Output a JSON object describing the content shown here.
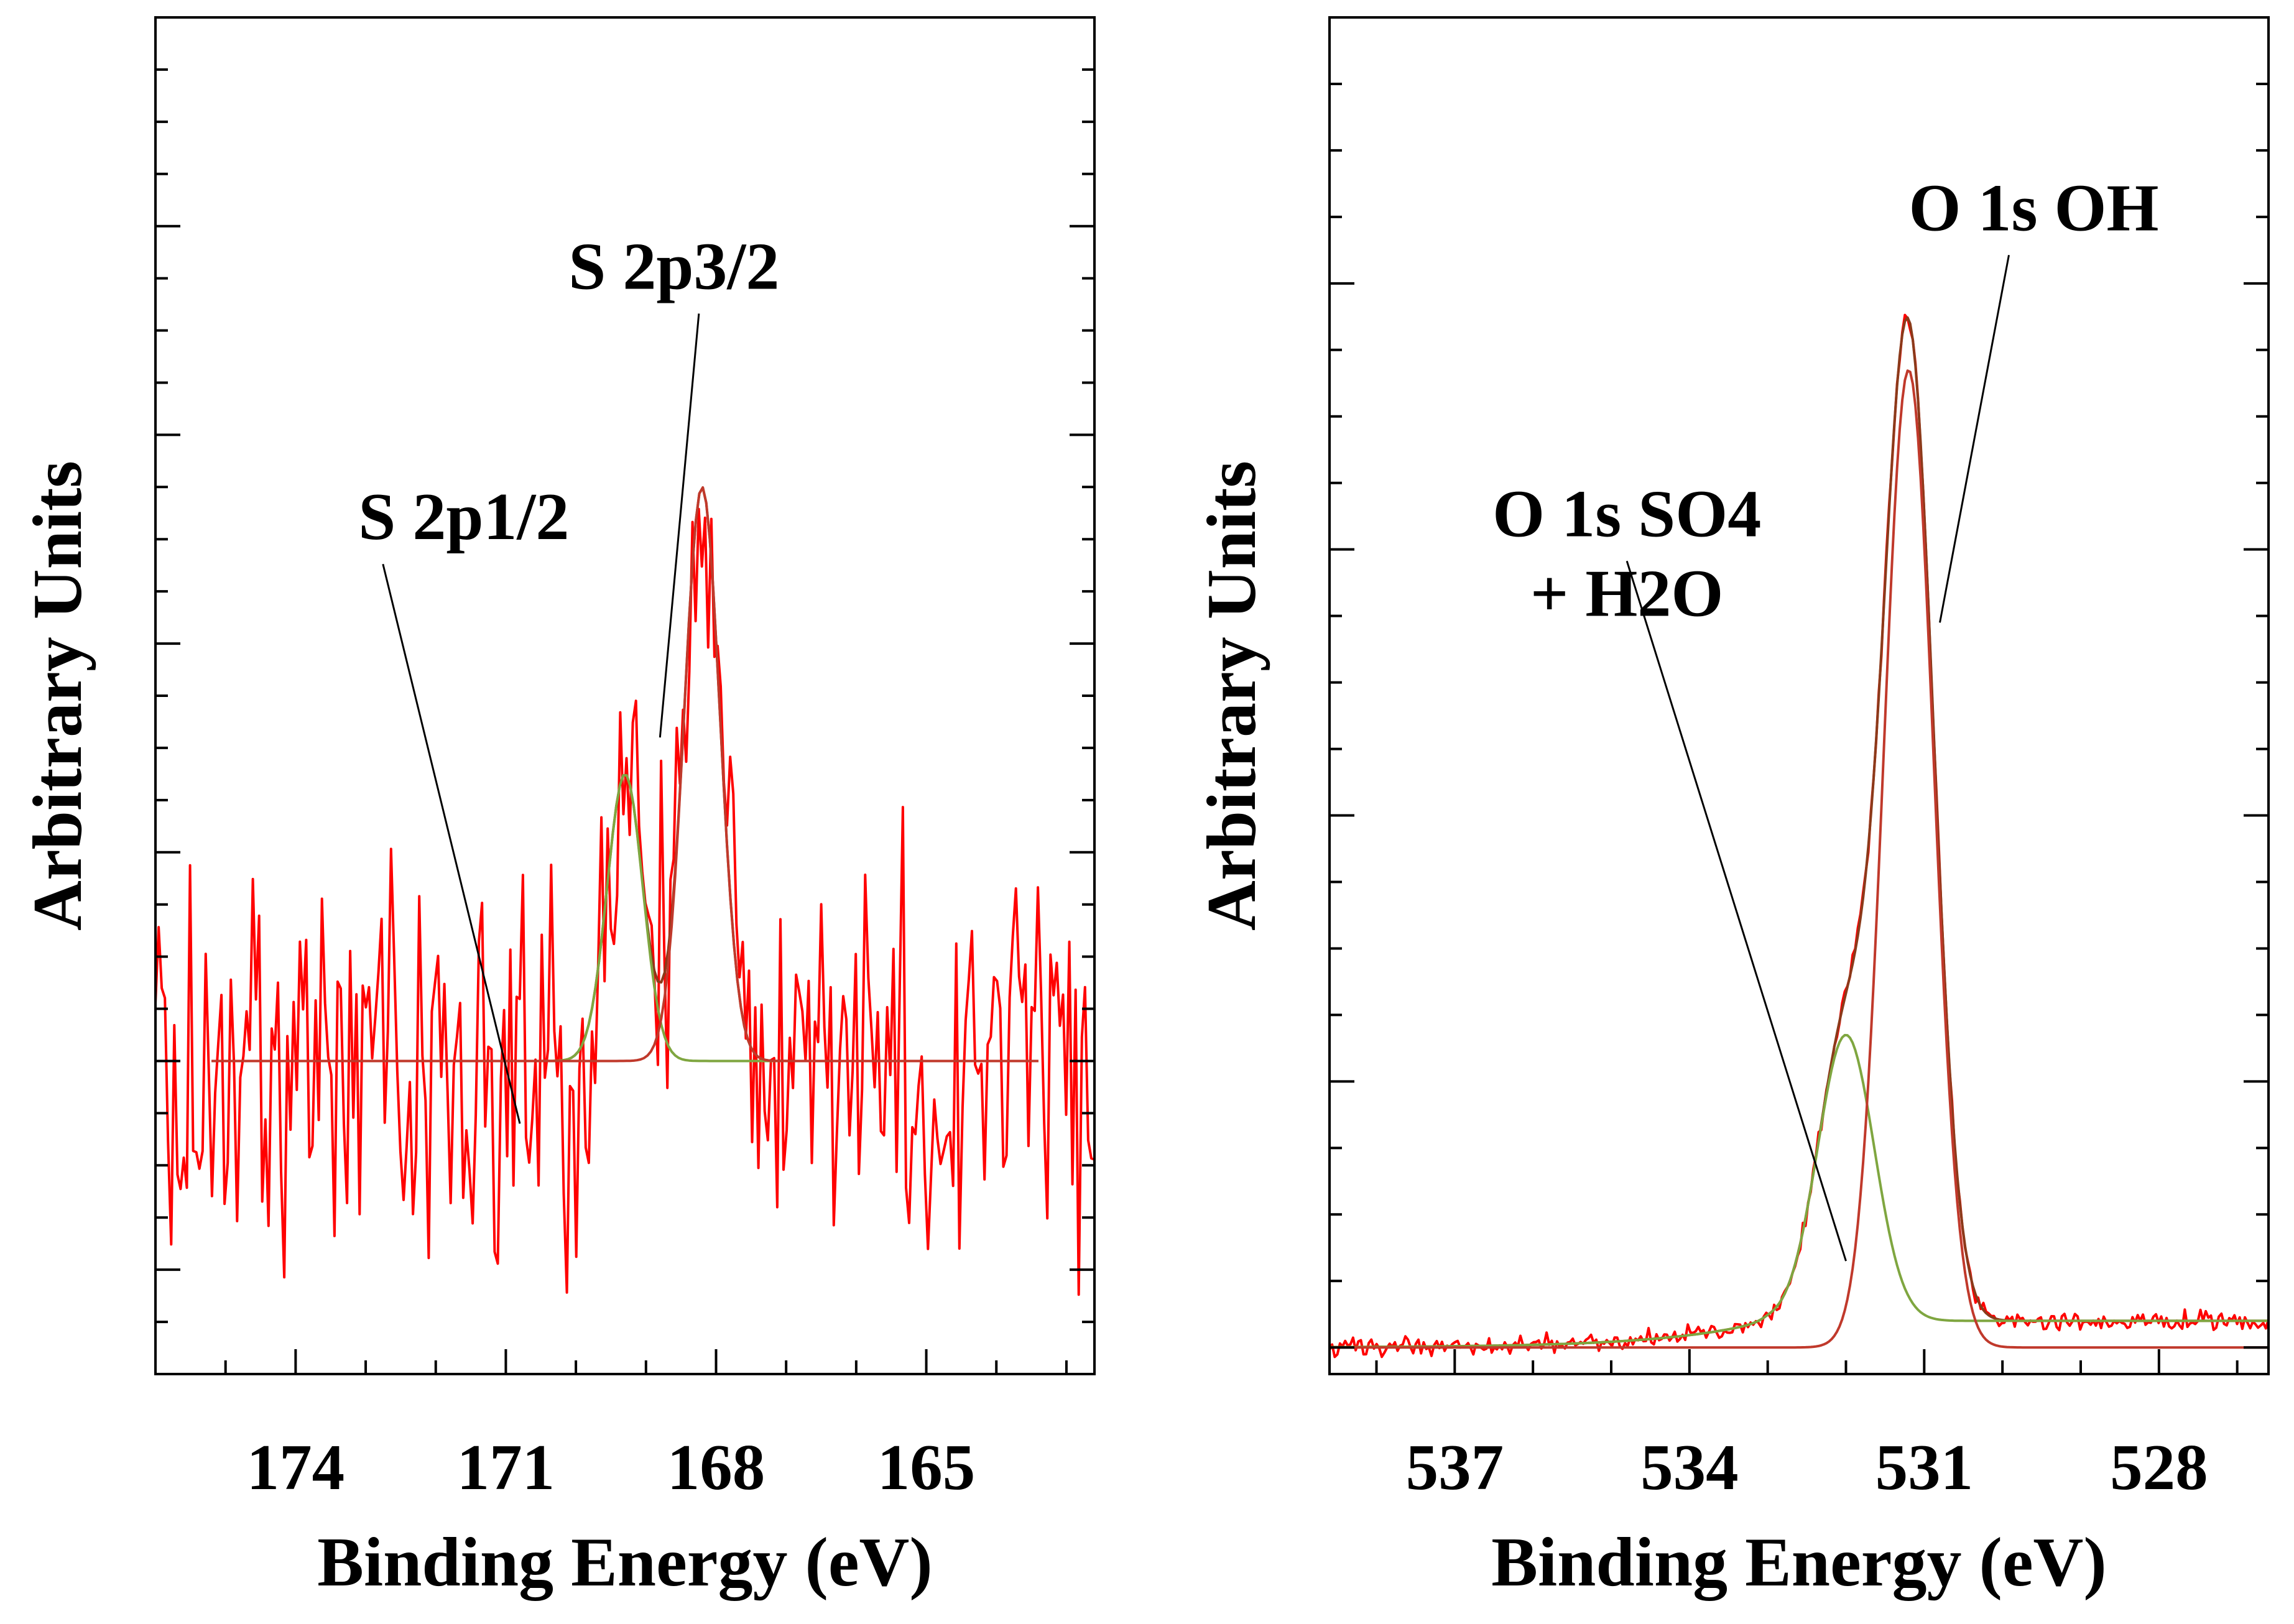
{
  "chart_data": [
    {
      "type": "line",
      "panel": "left",
      "xlabel": "Binding Energy (eV)",
      "ylabel": "Arbitrary Units",
      "x_reversed": true,
      "xlim": [
        176,
        162.6
      ],
      "ylim": [
        -0.3,
        1.0
      ],
      "xticks": [
        174,
        171,
        168,
        165
      ],
      "xtick_labels": [
        "174",
        "171",
        "168",
        "165"
      ],
      "grid": false,
      "annotations": [
        {
          "text": "S 2p3/2",
          "x": 168.6,
          "y": 0.74,
          "points_to": [
            168.8,
            0.31
          ]
        },
        {
          "text": "S 2p1/2",
          "x": 171.6,
          "y": 0.5,
          "points_to": [
            170.8,
            -0.06
          ]
        }
      ],
      "series": [
        {
          "role": "raw-data",
          "color": "#ff0000",
          "line_width": 4,
          "peaks": [
            [
              168.2,
              0.55,
              0.6
            ],
            [
              169.3,
              0.275,
              0.6
            ]
          ],
          "baseline": 0.0,
          "noise": 0.11,
          "x_range": [
            176,
            162.6
          ],
          "points": 300
        },
        {
          "role": "envelope",
          "color": "#8b3a1a",
          "line_width": 4,
          "peaks": [
            [
              168.2,
              0.55,
              0.6
            ],
            [
              169.3,
              0.275,
              0.6
            ]
          ],
          "baseline": 0.0,
          "x_range": [
            175.2,
            163.4
          ],
          "points": 240
        },
        {
          "role": "component",
          "color": "#7fa640",
          "line_width": 4,
          "peaks": [
            [
              169.3,
              0.275,
              0.6
            ]
          ],
          "baseline": 0.0,
          "x_range": [
            175.2,
            163.4
          ],
          "points": 240
        },
        {
          "role": "component",
          "color": "#c0392b",
          "line_width": 4,
          "peaks": [
            [
              168.2,
              0.55,
              0.6
            ]
          ],
          "baseline": 0.0,
          "x_range": [
            175.2,
            163.4
          ],
          "points": 240
        }
      ]
    },
    {
      "type": "line",
      "panel": "right",
      "xlabel": "Binding Energy (eV)",
      "ylabel": "Arbitrary Units",
      "x_reversed": true,
      "xlim": [
        538.6,
        526.6
      ],
      "ylim": [
        -0.02,
        1.0
      ],
      "xticks": [
        537,
        534,
        531,
        528
      ],
      "xtick_labels": [
        "537",
        "534",
        "531",
        "528"
      ],
      "grid": false,
      "annotations": [
        {
          "text": "O 1s OH",
          "x": 529.6,
          "y": 0.84,
          "points_to": [
            530.8,
            0.545
          ]
        },
        {
          "text": "O 1s SO4",
          "x": 534.8,
          "y": 0.61,
          "points_to": [
            532.0,
            0.065
          ]
        },
        {
          "text": "+ H2O",
          "x": 534.8,
          "y": 0.55
        }
      ],
      "series": [
        {
          "role": "raw-data",
          "color": "#ff0000",
          "line_width": 4,
          "peaks": [
            [
              531.2,
              0.735,
              0.75
            ],
            [
              532.0,
              0.215,
              0.85
            ]
          ],
          "tail": [
            533.0,
            0.02,
            1.3
          ],
          "baseline": 0.0,
          "noise": 0.004,
          "x_range": [
            538.6,
            526.6
          ],
          "points": 360
        },
        {
          "role": "envelope",
          "color": "#8b3a1a",
          "line_width": 4,
          "peaks": [
            [
              531.2,
              0.735,
              0.75
            ],
            [
              532.0,
              0.215,
              0.85
            ]
          ],
          "tail": [
            533.0,
            0.02,
            1.3
          ],
          "baseline": 0.0,
          "x_range": [
            538.6,
            526.6
          ],
          "points": 360
        },
        {
          "role": "component",
          "color": "#7fa640",
          "line_width": 4,
          "peaks": [
            [
              532.0,
              0.215,
              0.85
            ]
          ],
          "tail": [
            533.0,
            0.02,
            1.3
          ],
          "baseline": 0.0,
          "x_range": [
            538.6,
            526.6
          ],
          "points": 360
        },
        {
          "role": "component",
          "color": "#c0392b",
          "line_width": 4,
          "peaks": [
            [
              531.2,
              0.735,
              0.75
            ]
          ],
          "baseline": 0.0,
          "x_range": [
            538.6,
            526.6
          ],
          "points": 360
        }
      ]
    }
  ]
}
